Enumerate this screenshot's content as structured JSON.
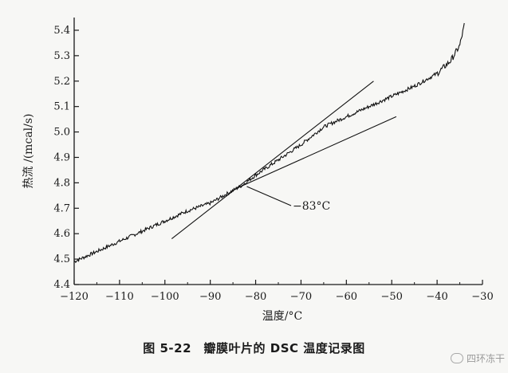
{
  "chart_data": {
    "type": "line",
    "xlabel": "温度/°C",
    "ylabel": "热流 /(mcal/s)",
    "xlim": [
      -120,
      -30
    ],
    "ylim": [
      4.4,
      5.45
    ],
    "x_ticks": [
      -120,
      -110,
      -100,
      -90,
      -80,
      -70,
      -60,
      -50,
      -40,
      -30
    ],
    "y_ticks": [
      4.4,
      4.5,
      4.6,
      4.7,
      4.8,
      4.9,
      5.0,
      5.1,
      5.2,
      5.3,
      5.4
    ],
    "series": [
      {
        "x": [
          -120,
          -115,
          -110,
          -105,
          -100,
          -95,
          -90,
          -85,
          -83,
          -80,
          -75,
          -70,
          -65,
          -60,
          -55,
          -50,
          -45,
          -40,
          -37,
          -35,
          -34
        ],
        "y": [
          4.49,
          4.53,
          4.57,
          4.61,
          4.65,
          4.69,
          4.72,
          4.77,
          4.79,
          4.83,
          4.89,
          4.95,
          5.02,
          5.06,
          5.1,
          5.14,
          5.18,
          5.23,
          5.28,
          5.34,
          5.42
        ]
      }
    ],
    "tangent_lines": [
      {
        "x": [
          -98.5,
          -54
        ],
        "y": [
          4.58,
          5.2
        ]
      },
      {
        "x": [
          -84,
          -49
        ],
        "y": [
          4.78,
          5.06
        ]
      }
    ],
    "annotations": [
      {
        "text": "−83°C",
        "x": -83,
        "y": 4.795
      }
    ]
  },
  "caption": "图 5-22　瓣膜叶片的 DSC 温度记录图",
  "watermark": "四环冻干"
}
